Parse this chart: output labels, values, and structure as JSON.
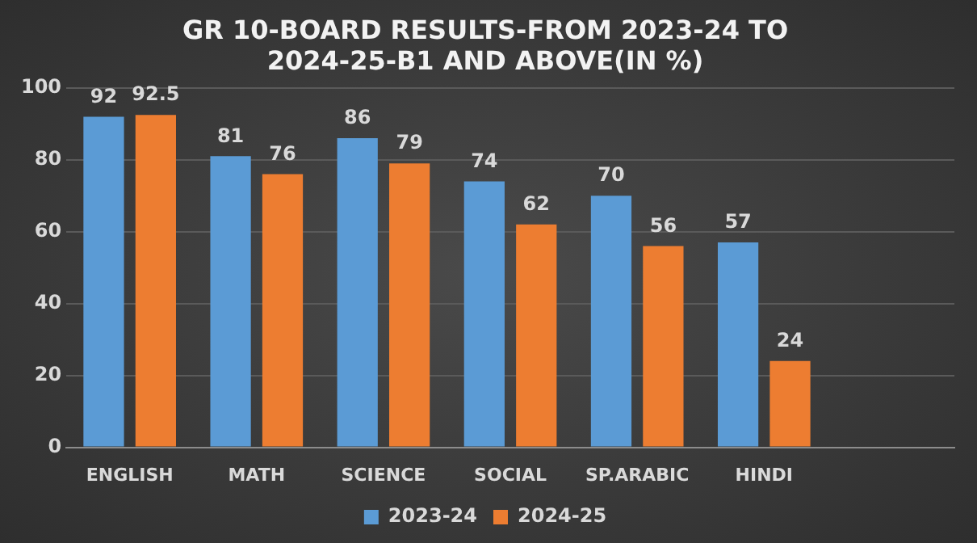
{
  "chart_data": {
    "type": "bar",
    "title": "GR 10-BOARD RESULTS-FROM 2023-24 TO 2024-25-B1 AND ABOVE(IN %)",
    "categories": [
      "ENGLISH",
      "MATH",
      "SCIENCE",
      "SOCIAL",
      "SP.ARABIC",
      "HINDI",
      null
    ],
    "series": [
      {
        "name": "2023-24",
        "color": "#5b9bd5",
        "values": [
          92,
          81,
          86,
          74,
          70,
          57,
          null
        ]
      },
      {
        "name": "2024-25",
        "color": "#ed7d31",
        "values": [
          92.5,
          76,
          79,
          62,
          56,
          24,
          null
        ]
      }
    ],
    "ylim": [
      0,
      100
    ],
    "yticks": [
      0,
      20,
      40,
      60,
      80,
      100
    ],
    "grid": "y",
    "legend": "bottom",
    "data_labels": true
  }
}
